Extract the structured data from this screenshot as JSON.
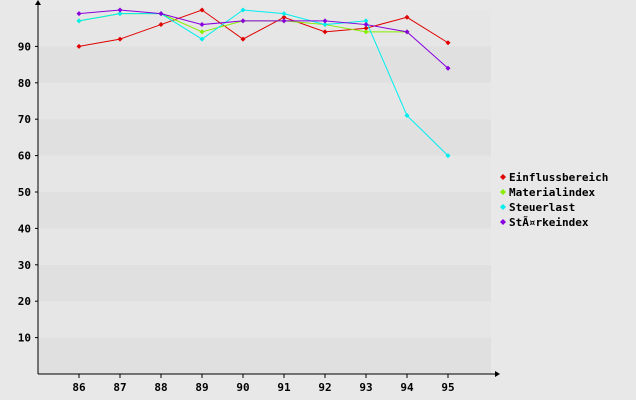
{
  "chart_data": {
    "type": "line",
    "x": [
      "86",
      "87",
      "88",
      "89",
      "90",
      "91",
      "92",
      "93",
      "94",
      "95"
    ],
    "y_ticks": [
      10,
      20,
      30,
      40,
      50,
      60,
      70,
      80,
      90
    ],
    "ylim": [
      0,
      100
    ],
    "grid": "alternating horizontal bands",
    "legend_position": "right",
    "series": [
      {
        "name": "Einflussbereich",
        "color": "#e00000",
        "values": [
          90,
          92,
          96,
          100,
          92,
          98,
          94,
          95,
          98,
          91
        ]
      },
      {
        "name": "Materialindex",
        "color": "#88ee00",
        "values": [
          97,
          99,
          99,
          94,
          97,
          97,
          96,
          94,
          94,
          null
        ]
      },
      {
        "name": "Steuerlast",
        "color": "#00eeee",
        "values": [
          97,
          99,
          99,
          92,
          100,
          99,
          96,
          97,
          71,
          60
        ]
      },
      {
        "name": "StÃ¤rkeindex",
        "color": "#8800dd",
        "values": [
          99,
          100,
          99,
          96,
          97,
          97,
          97,
          96,
          94,
          84
        ]
      }
    ]
  }
}
